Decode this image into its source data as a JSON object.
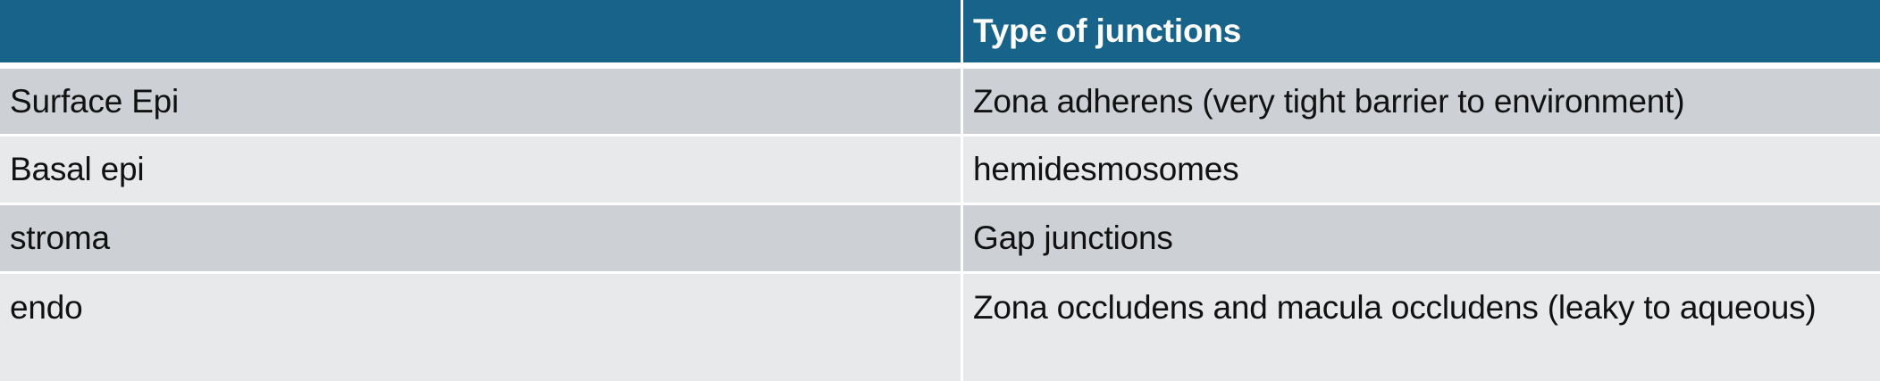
{
  "table": {
    "header": [
      "",
      "Type of junctions"
    ],
    "rows": [
      [
        "Surface Epi",
        "Zona adherens (very tight barrier to environment)"
      ],
      [
        "Basal epi",
        "hemidesmosomes"
      ],
      [
        "stroma",
        "Gap junctions"
      ],
      [
        "endo",
        "Zona occludens and macula occludens (leaky to aqueous)"
      ]
    ]
  },
  "colors": {
    "header_bg": "#17638a",
    "header_text": "#ffffff",
    "row_dark": "#cdd0d5",
    "row_light": "#e8e9eb"
  }
}
